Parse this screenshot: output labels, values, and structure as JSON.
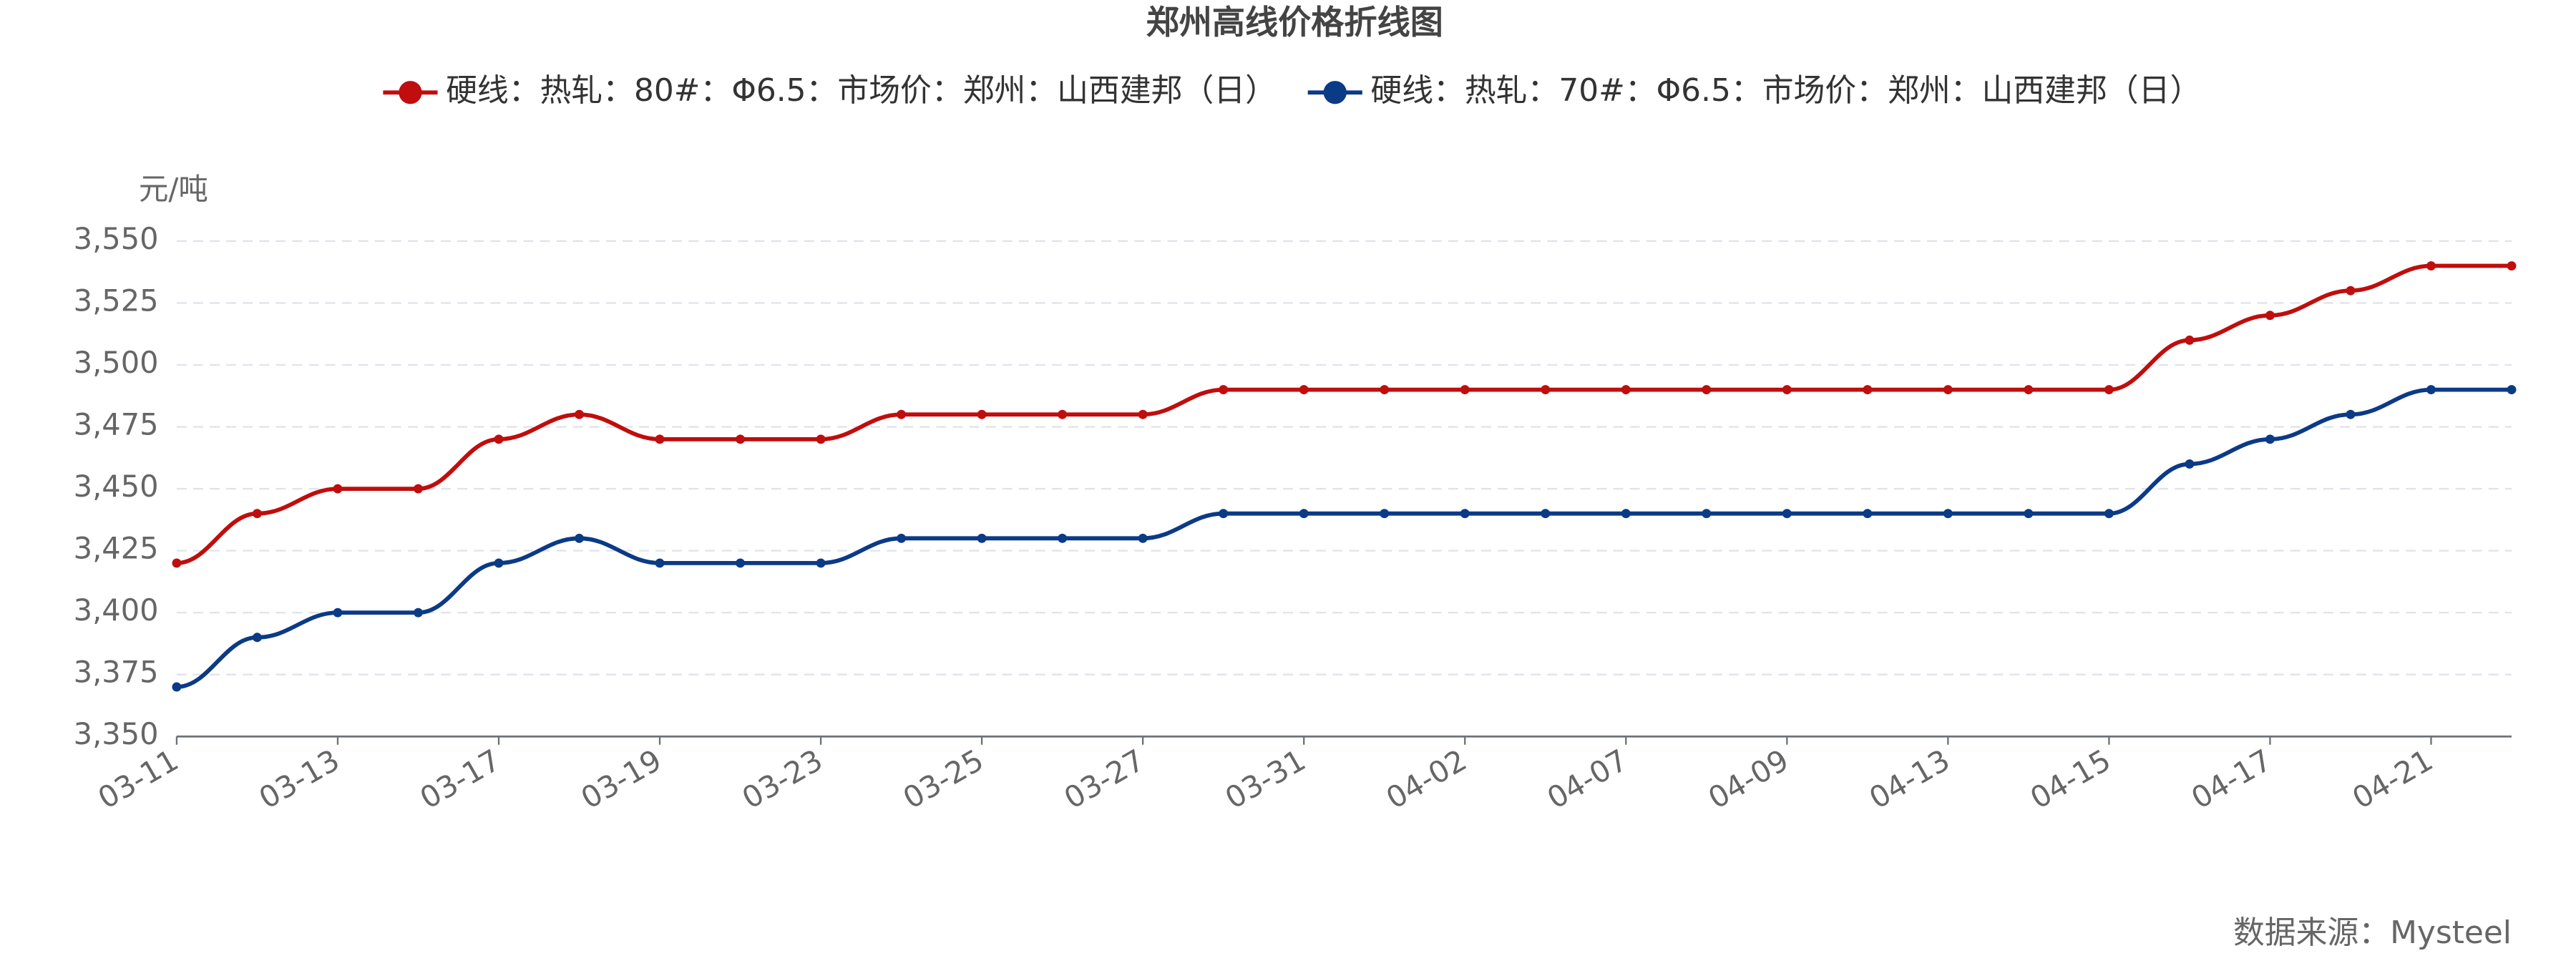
{
  "chart_data": {
    "type": "line",
    "title": "郑州高线价格折线图",
    "y_axis_label": "元/吨",
    "source": "数据来源：Mysteel",
    "categories": [
      "03-11",
      null,
      "03-13",
      null,
      "03-17",
      null,
      "03-19",
      null,
      "03-23",
      null,
      "03-25",
      null,
      "03-27",
      null,
      "03-31",
      null,
      "04-02",
      null,
      "04-07",
      null,
      "04-09",
      null,
      "04-13",
      null,
      "04-15",
      null,
      "04-17",
      null,
      "04-21",
      null
    ],
    "series": [
      {
        "name": "硬线：热轧：80#：Φ6.5：市场价：郑州：山西建邦（日）",
        "color": "#c00d0d",
        "values": [
          3420,
          3440,
          3450,
          3450,
          3470,
          3480,
          3470,
          3470,
          3470,
          3480,
          3480,
          3480,
          3480,
          3490,
          3490,
          3490,
          3490,
          3490,
          3490,
          3490,
          3490,
          3490,
          3490,
          3490,
          3490,
          3510,
          3520,
          3530,
          3540,
          3540
        ]
      },
      {
        "name": "硬线：热轧：70#：Φ6.5：市场价：郑州：山西建邦（日）",
        "color": "#0b3a86",
        "values": [
          3370,
          3390,
          3400,
          3400,
          3420,
          3430,
          3420,
          3420,
          3420,
          3430,
          3430,
          3430,
          3430,
          3440,
          3440,
          3440,
          3440,
          3440,
          3440,
          3440,
          3440,
          3440,
          3440,
          3440,
          3440,
          3460,
          3470,
          3480,
          3490,
          3490
        ]
      }
    ],
    "ylim": [
      3350,
      3550
    ],
    "yticks": [
      {
        "value": 3350,
        "label": "3,350"
      },
      {
        "value": 3375,
        "label": "3,375"
      },
      {
        "value": 3400,
        "label": "3,400"
      },
      {
        "value": 3425,
        "label": "3,425"
      },
      {
        "value": 3450,
        "label": "3,450"
      },
      {
        "value": 3475,
        "label": "3,475"
      },
      {
        "value": 3500,
        "label": "3,500"
      },
      {
        "value": 3525,
        "label": "3,525"
      },
      {
        "value": 3550,
        "label": "3,550"
      }
    ],
    "grid": true,
    "legend": "top"
  }
}
